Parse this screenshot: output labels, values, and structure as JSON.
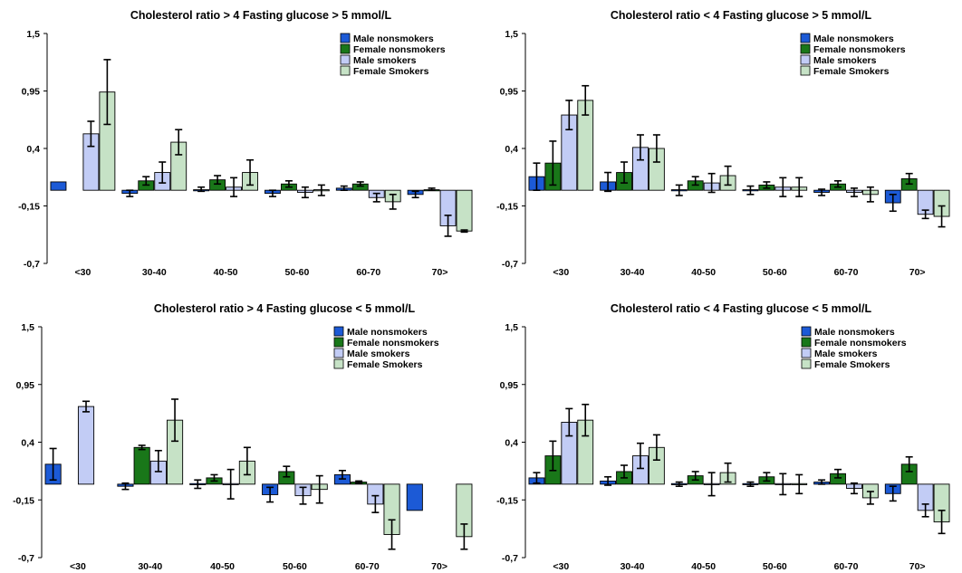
{
  "chart_data": [
    {
      "type": "bar",
      "title": "Cholesterol ratio > 4  Fasting glucose > 5 mmol/L",
      "xlabel": "",
      "ylabel": "",
      "ylim": [
        -0.7,
        1.5
      ],
      "yticks": [
        "1,5",
        "0,95",
        "0,4",
        "-0,15",
        "-0,7"
      ],
      "categories": [
        "<30",
        "30-40",
        "40-50",
        "50-60",
        "60-70",
        "70>"
      ],
      "legend_position": "top-right",
      "grid": false,
      "series": [
        {
          "name": "Male nonsmokers",
          "values": [
            0.08,
            -0.03,
            0.01,
            -0.03,
            0.02,
            -0.04
          ],
          "errors": [
            null,
            0.03,
            0.02,
            0.03,
            0.02,
            0.03
          ]
        },
        {
          "name": "Female nonsmokers",
          "values": [
            null,
            0.09,
            0.1,
            0.06,
            0.06,
            0.01
          ],
          "errors": [
            null,
            0.04,
            0.04,
            0.03,
            0.02,
            0.01
          ]
        },
        {
          "name": "Male smokers",
          "values": [
            0.54,
            0.17,
            0.03,
            -0.02,
            -0.07,
            -0.34
          ],
          "errors": [
            0.12,
            0.1,
            0.09,
            0.05,
            0.04,
            0.1
          ]
        },
        {
          "name": "Female Smokers",
          "values": [
            0.94,
            0.46,
            0.17,
            0.0,
            -0.11,
            -0.39
          ],
          "errors": [
            0.31,
            0.12,
            0.12,
            0.05,
            0.07,
            0.01
          ]
        }
      ]
    },
    {
      "type": "bar",
      "title": "Cholesterol ratio < 4  Fasting glucose > 5 mmol/L",
      "xlabel": "",
      "ylabel": "",
      "ylim": [
        -0.7,
        1.5
      ],
      "yticks": [
        "1,5",
        "0,95",
        "0,4",
        "-0,15",
        "-0,7"
      ],
      "categories": [
        "<30",
        "30-40",
        "40-50",
        "50-60",
        "60-70",
        "70>"
      ],
      "legend_position": "top-right",
      "grid": false,
      "series": [
        {
          "name": "Male nonsmokers",
          "values": [
            0.13,
            0.08,
            0.0,
            0.0,
            -0.02,
            -0.12
          ],
          "errors": [
            0.13,
            0.09,
            0.05,
            0.04,
            0.03,
            0.08
          ]
        },
        {
          "name": "Female nonsmokers",
          "values": [
            0.26,
            0.17,
            0.09,
            0.05,
            0.06,
            0.11
          ],
          "errors": [
            0.21,
            0.1,
            0.04,
            0.03,
            0.03,
            0.05
          ]
        },
        {
          "name": "Male smokers",
          "values": [
            0.72,
            0.41,
            0.07,
            0.03,
            -0.02,
            -0.23
          ],
          "errors": [
            0.14,
            0.12,
            0.09,
            0.09,
            0.04,
            0.04
          ]
        },
        {
          "name": "Female Smokers",
          "values": [
            0.86,
            0.4,
            0.14,
            0.03,
            -0.04,
            -0.25
          ],
          "errors": [
            0.14,
            0.13,
            0.09,
            0.09,
            0.07,
            0.1
          ]
        }
      ]
    },
    {
      "type": "bar",
      "title": "Cholesterol ratio > 4  Fasting glucose < 5 mmol/L",
      "xlabel": "",
      "ylabel": "",
      "ylim": [
        -0.7,
        1.5
      ],
      "yticks": [
        "1,5",
        "0,95",
        "0,4",
        "-0,15",
        "-0,7"
      ],
      "categories": [
        "<30",
        "30-40",
        "40-50",
        "50-60",
        "60-70",
        "70>"
      ],
      "legend_position": "top-right",
      "grid": false,
      "series": [
        {
          "name": "Male nonsmokers",
          "values": [
            0.19,
            -0.02,
            0.0,
            -0.1,
            0.09,
            -0.25
          ],
          "errors": [
            0.15,
            0.03,
            0.04,
            0.07,
            0.04,
            null
          ]
        },
        {
          "name": "Female nonsmokers",
          "values": [
            null,
            0.35,
            0.06,
            0.12,
            0.02,
            null
          ],
          "errors": [
            null,
            0.02,
            0.03,
            0.05,
            0.01,
            null
          ]
        },
        {
          "name": "Male smokers",
          "values": [
            0.74,
            0.22,
            0.0,
            -0.11,
            -0.19,
            null
          ],
          "errors": [
            0.05,
            0.1,
            0.14,
            0.08,
            0.08,
            null
          ]
        },
        {
          "name": "Female Smokers",
          "values": [
            null,
            0.61,
            0.22,
            -0.05,
            -0.48,
            -0.5
          ],
          "errors": [
            null,
            0.2,
            0.13,
            0.13,
            0.14,
            0.12
          ]
        }
      ]
    },
    {
      "type": "bar",
      "title": "Cholesterol ratio < 4  Fasting glucose < 5 mmol/L",
      "xlabel": "",
      "ylabel": "",
      "ylim": [
        -0.7,
        1.5
      ],
      "yticks": [
        "1,5",
        "0,95",
        "0,4",
        "-0,15",
        "-0,7"
      ],
      "categories": [
        "<30",
        "30-40",
        "40-50",
        "50-60",
        "60-70",
        "70>"
      ],
      "legend_position": "top-right",
      "grid": false,
      "series": [
        {
          "name": "Male nonsmokers",
          "values": [
            0.06,
            0.03,
            0.0,
            0.0,
            0.02,
            -0.09
          ],
          "errors": [
            0.05,
            0.04,
            0.02,
            0.02,
            0.02,
            0.07
          ]
        },
        {
          "name": "Female nonsmokers",
          "values": [
            0.27,
            0.12,
            0.08,
            0.07,
            0.1,
            0.19
          ],
          "errors": [
            0.14,
            0.06,
            0.04,
            0.04,
            0.04,
            0.07
          ]
        },
        {
          "name": "Male smokers",
          "values": [
            0.59,
            0.27,
            0.0,
            0.0,
            -0.04,
            -0.25
          ],
          "errors": [
            0.13,
            0.12,
            0.11,
            0.1,
            0.05,
            0.06
          ]
        },
        {
          "name": "Female Smokers",
          "values": [
            0.61,
            0.35,
            0.11,
            0.0,
            -0.13,
            -0.36
          ],
          "errors": [
            0.15,
            0.12,
            0.09,
            0.09,
            0.06,
            0.11
          ]
        }
      ]
    }
  ],
  "colors": {
    "Male nonsmokers": "#1c5ad6",
    "Female nonsmokers": "#197719",
    "Male smokers": "#c2ccf5",
    "Female Smokers": "#c6e2c6",
    "outline": "#000000",
    "text": "#000000"
  }
}
